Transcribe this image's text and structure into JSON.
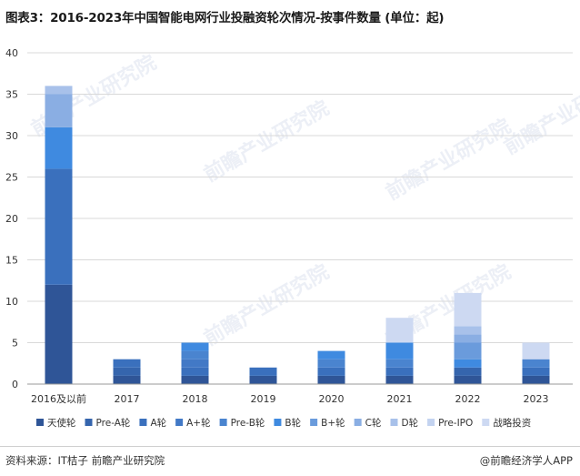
{
  "header": {
    "title": "图表3：2016-2023年中国智能电网行业投融资轮次情况-按事件数量 (单位：起)"
  },
  "footer": {
    "source": "资料来源：IT桔子 前瞻产业研究院",
    "brand": "@前瞻经济学人APP"
  },
  "watermark": {
    "text": "前瞻产业研究院"
  },
  "chart_data": {
    "type": "bar",
    "stacked": true,
    "title": "图表3：2016-2023年中国智能电网行业投融资轮次情况-按事件数量 (单位：起)",
    "categories": [
      "2016及以前",
      "2017",
      "2018",
      "2019",
      "2020",
      "2021",
      "2022",
      "2023"
    ],
    "ylim": [
      0,
      40
    ],
    "yticks": [
      0,
      5,
      10,
      15,
      20,
      25,
      30,
      35,
      40
    ],
    "grid": true,
    "legend_position": "bottom",
    "series": [
      {
        "name": "天使轮",
        "color": "#2f5597",
        "values": [
          12,
          1,
          1,
          1,
          1,
          1,
          1,
          1
        ]
      },
      {
        "name": "Pre-A轮",
        "color": "#3565ad",
        "values": [
          0,
          1,
          0,
          0,
          0,
          0,
          1,
          0
        ]
      },
      {
        "name": "A轮",
        "color": "#3a70bd",
        "values": [
          14,
          1,
          1,
          1,
          1,
          1,
          0,
          1
        ]
      },
      {
        "name": "A+轮",
        "color": "#4279c6",
        "values": [
          0,
          0,
          1,
          0,
          0,
          0,
          0,
          0
        ]
      },
      {
        "name": "Pre-B轮",
        "color": "#4a84cf",
        "values": [
          0,
          0,
          1,
          0,
          1,
          1,
          0,
          1
        ]
      },
      {
        "name": "B轮",
        "color": "#3f8ae0",
        "values": [
          5,
          0,
          1,
          0,
          1,
          2,
          1,
          0
        ]
      },
      {
        "name": "B+轮",
        "color": "#6a9bdc",
        "values": [
          0,
          0,
          0,
          0,
          0,
          0,
          2,
          0
        ]
      },
      {
        "name": "C轮",
        "color": "#8aaee3",
        "values": [
          4,
          0,
          0,
          0,
          0,
          0,
          1,
          0
        ]
      },
      {
        "name": "D轮",
        "color": "#a8c1ea",
        "values": [
          1,
          0,
          0,
          0,
          0,
          0,
          1,
          0
        ]
      },
      {
        "name": "Pre-IPO",
        "color": "#c3d3f0",
        "values": [
          0,
          0,
          0,
          0,
          0,
          0,
          0,
          0
        ]
      },
      {
        "name": "战略投资",
        "color": "#cdd9f2",
        "values": [
          0,
          0,
          0,
          0,
          0,
          3,
          4,
          2
        ]
      }
    ]
  }
}
